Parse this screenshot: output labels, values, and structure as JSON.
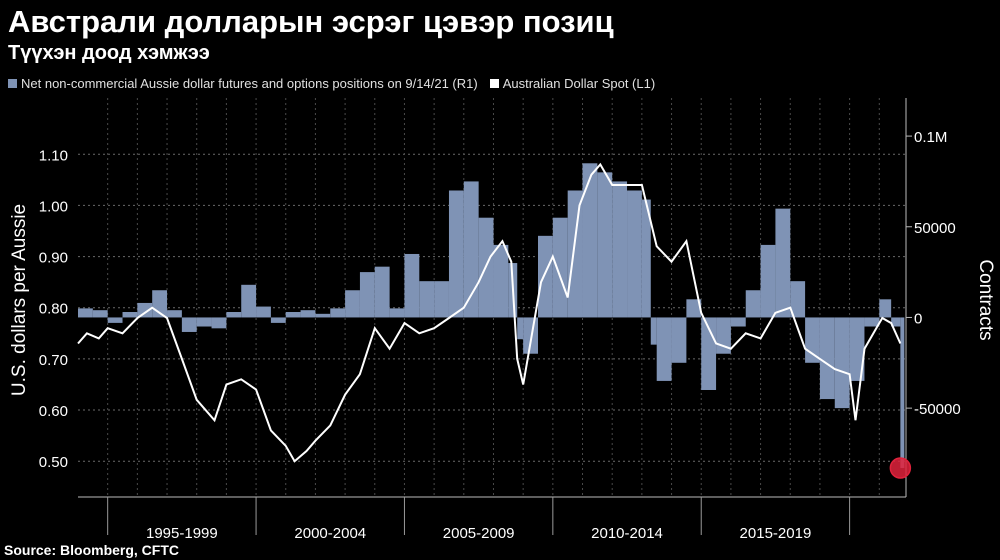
{
  "header": {
    "title": "Австрали долларын эсрэг цэвэр позиц",
    "subtitle": "Түүхэн доод хэмжээ"
  },
  "legend": {
    "positions_label": "Net non-commercial Aussie dollar futures and options positions on 9/14/21 (R1)",
    "spot_label": "Australian Dollar Spot  (L1)",
    "positions_color": "#7f93b5",
    "spot_color": "#ffffff"
  },
  "footer": {
    "source": "Source:  Bloomberg, CFTC"
  },
  "chart_data": {
    "type": "area",
    "ylabel_left": "U.S. dollars per Aussie",
    "ylabel_right": "Contracts",
    "xlabel": "",
    "x_tick_labels": [
      "1995-1999",
      "2000-2004",
      "2005-2009",
      "2010-2014",
      "2015-2019"
    ],
    "y_left_ticks": [
      "0.50",
      "0.60",
      "0.70",
      "0.80",
      "0.90",
      "1.00",
      "1.10"
    ],
    "y_right_ticks": [
      "0.1M",
      "50000",
      "0",
      "-50000"
    ],
    "y_left_range": [
      0.43,
      1.21
    ],
    "y_right_range": [
      -99000,
      121000
    ],
    "x_range": [
      1994.0,
      2021.9
    ],
    "grid": true,
    "highlight": {
      "x": 2021.71,
      "value": -83000,
      "series": "positions",
      "color": "#e0223c"
    },
    "series": [
      {
        "name": "Net non-commercial Aussie dollar futures and options positions on 9/14/21",
        "axis": "right",
        "color": "#7f93b5",
        "kind": "bars",
        "x": [
          1994.0,
          1994.5,
          1995.0,
          1995.5,
          1996.0,
          1996.5,
          1997.0,
          1997.5,
          1998.0,
          1998.5,
          1999.0,
          1999.5,
          2000.0,
          2000.5,
          2001.0,
          2001.5,
          2002.0,
          2002.5,
          2003.0,
          2003.5,
          2004.0,
          2004.5,
          2005.0,
          2005.5,
          2006.0,
          2006.5,
          2007.0,
          2007.5,
          2008.0,
          2008.5,
          2008.8,
          2009.0,
          2009.5,
          2010.0,
          2010.5,
          2011.0,
          2011.5,
          2012.0,
          2012.5,
          2013.0,
          2013.3,
          2013.5,
          2014.0,
          2014.5,
          2015.0,
          2015.5,
          2016.0,
          2016.5,
          2017.0,
          2017.5,
          2018.0,
          2018.5,
          2019.0,
          2019.5,
          2020.0,
          2020.5,
          2021.0,
          2021.4,
          2021.71
        ],
        "y": [
          5000,
          4000,
          -3000,
          3000,
          8000,
          15000,
          4000,
          -8000,
          -5000,
          -6000,
          3000,
          18000,
          6000,
          -3000,
          3000,
          4000,
          2000,
          5000,
          15000,
          25000,
          28000,
          5000,
          35000,
          20000,
          20000,
          70000,
          75000,
          55000,
          40000,
          30000,
          -12000,
          -20000,
          45000,
          55000,
          70000,
          85000,
          80000,
          75000,
          70000,
          65000,
          -15000,
          -35000,
          -25000,
          10000,
          -40000,
          -20000,
          -5000,
          15000,
          40000,
          60000,
          20000,
          -25000,
          -45000,
          -50000,
          -35000,
          -5000,
          10000,
          -5000,
          -83000
        ]
      },
      {
        "name": "Australian Dollar Spot",
        "axis": "left",
        "color": "#ffffff",
        "kind": "line",
        "x": [
          1994.0,
          1994.3,
          1994.7,
          1995.0,
          1995.5,
          1996.0,
          1996.5,
          1997.0,
          1997.5,
          1998.0,
          1998.6,
          1999.0,
          1999.5,
          2000.0,
          2000.5,
          2001.0,
          2001.3,
          2001.7,
          2002.0,
          2002.5,
          2003.0,
          2003.5,
          2004.0,
          2004.5,
          2005.0,
          2005.5,
          2006.0,
          2006.5,
          2007.0,
          2007.5,
          2007.9,
          2008.3,
          2008.6,
          2008.8,
          2009.0,
          2009.3,
          2009.6,
          2010.0,
          2010.5,
          2010.9,
          2011.3,
          2011.6,
          2012.0,
          2012.5,
          2013.0,
          2013.5,
          2014.0,
          2014.5,
          2015.0,
          2015.5,
          2016.0,
          2016.5,
          2017.0,
          2017.5,
          2018.0,
          2018.5,
          2019.0,
          2019.5,
          2020.0,
          2020.2,
          2020.5,
          2020.9,
          2021.1,
          2021.4,
          2021.71
        ],
        "y": [
          0.73,
          0.75,
          0.74,
          0.76,
          0.75,
          0.78,
          0.8,
          0.78,
          0.7,
          0.62,
          0.58,
          0.65,
          0.66,
          0.64,
          0.56,
          0.53,
          0.5,
          0.52,
          0.54,
          0.57,
          0.63,
          0.67,
          0.76,
          0.72,
          0.77,
          0.75,
          0.76,
          0.78,
          0.8,
          0.85,
          0.9,
          0.93,
          0.89,
          0.7,
          0.65,
          0.75,
          0.85,
          0.9,
          0.82,
          1.0,
          1.06,
          1.08,
          1.04,
          1.04,
          1.04,
          0.92,
          0.89,
          0.93,
          0.79,
          0.73,
          0.72,
          0.75,
          0.74,
          0.79,
          0.8,
          0.72,
          0.7,
          0.68,
          0.67,
          0.58,
          0.72,
          0.76,
          0.78,
          0.77,
          0.73
        ]
      }
    ]
  }
}
